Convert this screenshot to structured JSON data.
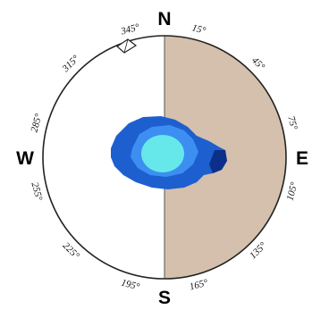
{
  "cardinals": {
    "north": "N",
    "east": "E",
    "south": "S",
    "west": "W"
  },
  "degree_labels": [
    "15°",
    "45°",
    "75°",
    "105°",
    "135°",
    "165°",
    "195°",
    "225°",
    "255°",
    "285°",
    "315°",
    "345°"
  ],
  "colors": {
    "shaded_half": "#d4c0ac",
    "ring": "#222222",
    "outer_blob": "#1e5fd0",
    "mid_blob": "#3c8ff0",
    "core_blob": "#66e8ea",
    "dark_edge": "#0c2f8a"
  },
  "icons": {
    "north_marker": "kite-arrow-icon"
  }
}
